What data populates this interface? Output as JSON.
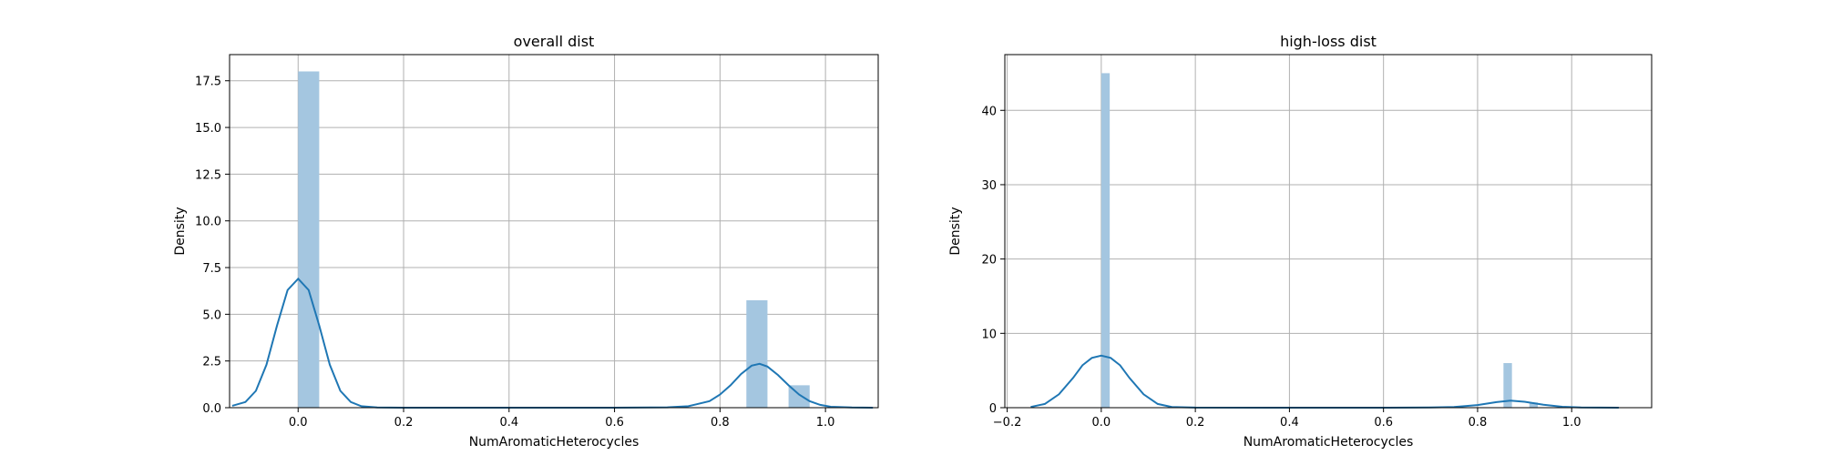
{
  "chart_data": [
    {
      "type": "bar",
      "title": "overall dist",
      "xlabel": "NumAromaticHeterocycles",
      "ylabel": "Density",
      "xlim": [
        -0.13,
        1.1
      ],
      "ylim": [
        0,
        18.9
      ],
      "xticks": [
        0.0,
        0.2,
        0.4,
        0.6,
        0.8,
        1.0
      ],
      "xtick_labels": [
        "0.0",
        "0.2",
        "0.4",
        "0.6",
        "0.8",
        "1.0"
      ],
      "yticks": [
        0.0,
        2.5,
        5.0,
        7.5,
        10.0,
        12.5,
        15.0,
        17.5
      ],
      "ytick_labels": [
        "0.0",
        "2.5",
        "5.0",
        "7.5",
        "10.0",
        "12.5",
        "15.0",
        "17.5"
      ],
      "grid": true,
      "bar_color": "#a4c6e0",
      "line_color": "#1f77b4",
      "bars": [
        {
          "x0": 0.0,
          "x1": 0.04,
          "value": 18.0
        },
        {
          "x0": 0.85,
          "x1": 0.89,
          "value": 5.75
        },
        {
          "x0": 0.93,
          "x1": 0.97,
          "value": 1.2
        }
      ],
      "kde": {
        "x": [
          -0.125,
          -0.1,
          -0.08,
          -0.06,
          -0.04,
          -0.02,
          0.0,
          0.02,
          0.04,
          0.06,
          0.08,
          0.1,
          0.12,
          0.15,
          0.2,
          0.4,
          0.6,
          0.7,
          0.74,
          0.78,
          0.8,
          0.82,
          0.84,
          0.86,
          0.875,
          0.89,
          0.91,
          0.93,
          0.95,
          0.97,
          0.99,
          1.01,
          1.05,
          1.09
        ],
        "y": [
          0.1,
          0.3,
          0.9,
          2.3,
          4.4,
          6.3,
          6.9,
          6.3,
          4.4,
          2.3,
          0.9,
          0.3,
          0.08,
          0.01,
          0.0,
          0.0,
          0.0,
          0.02,
          0.08,
          0.35,
          0.7,
          1.2,
          1.8,
          2.25,
          2.35,
          2.2,
          1.75,
          1.2,
          0.7,
          0.35,
          0.15,
          0.05,
          0.01,
          0.0
        ]
      }
    },
    {
      "type": "bar",
      "title": "high-loss dist",
      "xlabel": "NumAromaticHeterocycles",
      "ylabel": "Density",
      "xlim": [
        -0.205,
        1.17
      ],
      "ylim": [
        0,
        47.5
      ],
      "xticks": [
        -0.2,
        0.0,
        0.2,
        0.4,
        0.6,
        0.8,
        1.0
      ],
      "xtick_labels": [
        "−0.2",
        "0.0",
        "0.2",
        "0.4",
        "0.6",
        "0.8",
        "1.0"
      ],
      "yticks": [
        0,
        10,
        20,
        30,
        40
      ],
      "ytick_labels": [
        "0",
        "10",
        "20",
        "30",
        "40"
      ],
      "grid": true,
      "bar_color": "#a4c6e0",
      "line_color": "#1f77b4",
      "bars": [
        {
          "x0": 0.0,
          "x1": 0.018,
          "value": 45.0
        },
        {
          "x0": 0.855,
          "x1": 0.873,
          "value": 6.0
        },
        {
          "x0": 0.91,
          "x1": 0.928,
          "value": 0.7
        }
      ],
      "kde": {
        "x": [
          -0.15,
          -0.12,
          -0.09,
          -0.06,
          -0.04,
          -0.02,
          0.0,
          0.02,
          0.04,
          0.06,
          0.09,
          0.12,
          0.15,
          0.2,
          0.4,
          0.6,
          0.7,
          0.75,
          0.8,
          0.84,
          0.87,
          0.9,
          0.94,
          0.98,
          1.02,
          1.1
        ],
        "y": [
          0.1,
          0.5,
          1.8,
          4.0,
          5.7,
          6.7,
          7.0,
          6.7,
          5.7,
          4.0,
          1.8,
          0.5,
          0.1,
          0.01,
          0.0,
          0.0,
          0.02,
          0.1,
          0.35,
          0.75,
          0.95,
          0.8,
          0.4,
          0.12,
          0.03,
          0.0
        ]
      }
    }
  ]
}
